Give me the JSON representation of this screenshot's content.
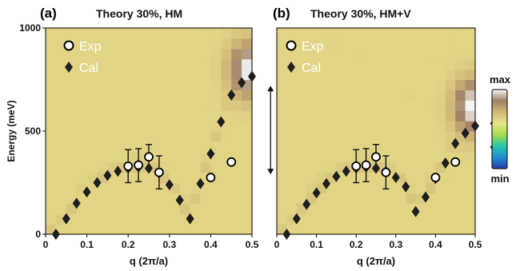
{
  "chart_data": [
    {
      "type": "heatmap",
      "panel_label": "(a)",
      "title": "Theory 30%, HM",
      "xlabel": "q (2π/a)",
      "ylabel": "Energy (meV)",
      "xlim": [
        0,
        0.5
      ],
      "ylim": [
        0,
        1000
      ],
      "x_ticks": [
        "0",
        "0.1",
        "0.2",
        "0.3",
        "0.4",
        "0.5"
      ],
      "y_ticks": [
        "0",
        "500",
        "1000"
      ],
      "legend": {
        "placement": "top-left",
        "entries": [
          "Exp",
          "Cal"
        ]
      },
      "series": [
        {
          "name": "Exp",
          "marker": "open-circle",
          "points": [
            {
              "x": 0.2,
              "y": 330,
              "yerr": 80
            },
            {
              "x": 0.225,
              "y": 335,
              "yerr": 80
            },
            {
              "x": 0.25,
              "y": 375,
              "yerr": 60
            },
            {
              "x": 0.275,
              "y": 300,
              "yerr": 80
            },
            {
              "x": 0.4,
              "y": 275,
              "yerr": 0
            },
            {
              "x": 0.45,
              "y": 350,
              "yerr": 0
            }
          ]
        },
        {
          "name": "Cal",
          "marker": "diamond",
          "points": [
            {
              "x": 0.025,
              "y": 0
            },
            {
              "x": 0.05,
              "y": 75
            },
            {
              "x": 0.075,
              "y": 150
            },
            {
              "x": 0.1,
              "y": 205
            },
            {
              "x": 0.125,
              "y": 250
            },
            {
              "x": 0.15,
              "y": 285
            },
            {
              "x": 0.175,
              "y": 305
            },
            {
              "x": 0.2,
              "y": 320
            },
            {
              "x": 0.225,
              "y": 325
            },
            {
              "x": 0.25,
              "y": 320
            },
            {
              "x": 0.275,
              "y": 295
            },
            {
              "x": 0.3,
              "y": 240
            },
            {
              "x": 0.325,
              "y": 165
            },
            {
              "x": 0.35,
              "y": 75
            },
            {
              "x": 0.375,
              "y": 245
            },
            {
              "x": 0.4,
              "y": 390
            },
            {
              "x": 0.425,
              "y": 545
            },
            {
              "x": 0.45,
              "y": 675
            },
            {
              "x": 0.475,
              "y": 735
            },
            {
              "x": 0.5,
              "y": 765
            }
          ]
        }
      ],
      "heatmap_ridge": {
        "lower_branch": [
          0,
          75,
          150,
          205,
          250,
          285,
          305,
          320,
          325,
          320,
          295,
          240,
          165,
          75,
          245,
          390,
          545,
          675,
          735,
          765
        ],
        "upper_branch": [
          700,
          780,
          840,
          880,
          900,
          900,
          890,
          870,
          840,
          810,
          780,
          745,
          715,
          700,
          700,
          720,
          760,
          800,
          830,
          860
        ],
        "upper_intensity": 0.7,
        "hot_spot": {
          "x": 0.49,
          "y": 800,
          "intensity": 1.0
        }
      },
      "double_arrow": {
        "x": 0.545,
        "y_from": 290,
        "y_to": 720
      }
    },
    {
      "type": "heatmap",
      "panel_label": "(b)",
      "title": "Theory 30%, HM+V",
      "xlabel": "q (2π/a)",
      "ylabel": "",
      "xlim": [
        0,
        0.5
      ],
      "ylim": [
        0,
        1000
      ],
      "x_ticks": [
        "0",
        "0.1",
        "0.2",
        "0.3",
        "0.4",
        "0.5"
      ],
      "y_ticks": [],
      "legend": {
        "placement": "top-left",
        "entries": [
          "Exp",
          "Cal"
        ]
      },
      "series": [
        {
          "name": "Exp",
          "marker": "open-circle",
          "points": [
            {
              "x": 0.2,
              "y": 330,
              "yerr": 80
            },
            {
              "x": 0.225,
              "y": 335,
              "yerr": 80
            },
            {
              "x": 0.25,
              "y": 375,
              "yerr": 60
            },
            {
              "x": 0.275,
              "y": 300,
              "yerr": 80
            },
            {
              "x": 0.4,
              "y": 275,
              "yerr": 0
            },
            {
              "x": 0.45,
              "y": 350,
              "yerr": 0
            }
          ]
        },
        {
          "name": "Cal",
          "marker": "diamond",
          "points": [
            {
              "x": 0.025,
              "y": 0
            },
            {
              "x": 0.05,
              "y": 75
            },
            {
              "x": 0.075,
              "y": 145
            },
            {
              "x": 0.1,
              "y": 200
            },
            {
              "x": 0.125,
              "y": 245
            },
            {
              "x": 0.15,
              "y": 280
            },
            {
              "x": 0.175,
              "y": 305
            },
            {
              "x": 0.2,
              "y": 320
            },
            {
              "x": 0.225,
              "y": 325
            },
            {
              "x": 0.25,
              "y": 320
            },
            {
              "x": 0.275,
              "y": 305
            },
            {
              "x": 0.3,
              "y": 275
            },
            {
              "x": 0.325,
              "y": 230
            },
            {
              "x": 0.35,
              "y": 110
            },
            {
              "x": 0.375,
              "y": 180
            },
            {
              "x": 0.4,
              "y": 270
            },
            {
              "x": 0.425,
              "y": 345
            },
            {
              "x": 0.45,
              "y": 440
            },
            {
              "x": 0.475,
              "y": 490
            },
            {
              "x": 0.5,
              "y": 525
            }
          ]
        }
      ],
      "heatmap_ridge": {
        "lower_branch": [
          0,
          75,
          145,
          200,
          245,
          280,
          305,
          320,
          325,
          320,
          305,
          275,
          230,
          110,
          180,
          270,
          345,
          440,
          490,
          525
        ],
        "upper_branch": [
          720,
          800,
          860,
          900,
          920,
          920,
          905,
          880,
          850,
          810,
          770,
          730,
          690,
          650,
          620,
          610,
          620,
          640,
          660,
          680
        ],
        "upper_intensity": 0.7,
        "hot_spot": {
          "x": 0.49,
          "y": 620,
          "intensity": 1.0
        }
      },
      "double_arrow": {
        "x": 0.545,
        "y_from": 400,
        "y_to": 560
      }
    }
  ],
  "colorbar": {
    "max_label": "max",
    "min_label": "min",
    "colors": [
      "#2a3aa8",
      "#1f8fd6",
      "#25c8a8",
      "#a8dc4c",
      "#e8e48c",
      "#d2b878",
      "#a08064",
      "#f6f6f6"
    ]
  }
}
